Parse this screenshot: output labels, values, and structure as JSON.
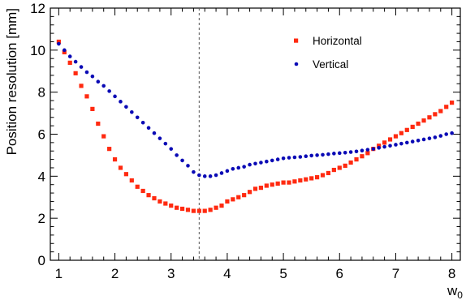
{
  "chart_data": {
    "type": "scatter",
    "xlabel": "w",
    "xlabel_sub": "0",
    "ylabel": "Position resolution [mm]",
    "xlim": [
      0.85,
      8.15
    ],
    "ylim": [
      0,
      12
    ],
    "xticks": [
      "1",
      "2",
      "3",
      "4",
      "5",
      "6",
      "7",
      "8"
    ],
    "yticks": [
      "0",
      "2",
      "4",
      "6",
      "8",
      "10",
      "12"
    ],
    "vline": {
      "x": 3.5,
      "style": "dashed",
      "color": "#555555"
    },
    "legend_position": "top-right",
    "series": [
      {
        "name": "Horizontal",
        "color": "#ff2a10",
        "marker": "square",
        "x": [
          1.0,
          1.1,
          1.2,
          1.3,
          1.4,
          1.5,
          1.6,
          1.7,
          1.8,
          1.9,
          2.0,
          2.1,
          2.2,
          2.3,
          2.4,
          2.5,
          2.6,
          2.7,
          2.8,
          2.9,
          3.0,
          3.1,
          3.2,
          3.3,
          3.4,
          3.5,
          3.6,
          3.7,
          3.8,
          3.9,
          4.0,
          4.1,
          4.2,
          4.3,
          4.4,
          4.5,
          4.6,
          4.7,
          4.8,
          4.9,
          5.0,
          5.1,
          5.2,
          5.3,
          5.4,
          5.5,
          5.6,
          5.7,
          5.8,
          5.9,
          6.0,
          6.1,
          6.2,
          6.3,
          6.4,
          6.5,
          6.6,
          6.7,
          6.8,
          6.9,
          7.0,
          7.1,
          7.2,
          7.3,
          7.4,
          7.5,
          7.6,
          7.7,
          7.8,
          7.9,
          8.0
        ],
        "values": [
          10.4,
          9.9,
          9.4,
          8.9,
          8.3,
          7.8,
          7.2,
          6.5,
          5.9,
          5.3,
          4.8,
          4.4,
          4.1,
          3.8,
          3.5,
          3.3,
          3.1,
          2.95,
          2.8,
          2.7,
          2.6,
          2.5,
          2.45,
          2.4,
          2.35,
          2.35,
          2.35,
          2.4,
          2.5,
          2.6,
          2.8,
          2.9,
          3.0,
          3.1,
          3.25,
          3.4,
          3.45,
          3.55,
          3.6,
          3.65,
          3.7,
          3.7,
          3.75,
          3.8,
          3.85,
          3.9,
          3.95,
          4.05,
          4.15,
          4.3,
          4.4,
          4.5,
          4.65,
          4.8,
          4.95,
          5.1,
          5.3,
          5.45,
          5.6,
          5.75,
          5.9,
          6.05,
          6.2,
          6.35,
          6.5,
          6.65,
          6.8,
          6.95,
          7.1,
          7.3,
          7.5
        ]
      },
      {
        "name": "Vertical",
        "color": "#0a0ab5",
        "marker": "circle",
        "x": [
          1.0,
          1.1,
          1.2,
          1.3,
          1.4,
          1.5,
          1.6,
          1.7,
          1.8,
          1.9,
          2.0,
          2.1,
          2.2,
          2.3,
          2.4,
          2.5,
          2.6,
          2.7,
          2.8,
          2.9,
          3.0,
          3.1,
          3.2,
          3.3,
          3.4,
          3.5,
          3.6,
          3.7,
          3.8,
          3.9,
          4.0,
          4.1,
          4.2,
          4.3,
          4.4,
          4.5,
          4.6,
          4.7,
          4.8,
          4.9,
          5.0,
          5.1,
          5.2,
          5.3,
          5.4,
          5.5,
          5.6,
          5.7,
          5.8,
          5.9,
          6.0,
          6.1,
          6.2,
          6.3,
          6.4,
          6.5,
          6.6,
          6.7,
          6.8,
          6.9,
          7.0,
          7.1,
          7.2,
          7.3,
          7.4,
          7.5,
          7.6,
          7.7,
          7.8,
          7.9,
          8.0
        ],
        "values": [
          10.3,
          10.0,
          9.7,
          9.45,
          9.2,
          8.95,
          8.75,
          8.5,
          8.3,
          8.05,
          7.8,
          7.55,
          7.3,
          7.05,
          6.8,
          6.55,
          6.3,
          6.05,
          5.8,
          5.55,
          5.3,
          5.0,
          4.75,
          4.5,
          4.2,
          4.05,
          4.0,
          4.0,
          4.05,
          4.15,
          4.25,
          4.35,
          4.4,
          4.45,
          4.55,
          4.6,
          4.65,
          4.7,
          4.75,
          4.8,
          4.85,
          4.88,
          4.9,
          4.92,
          4.95,
          4.98,
          5.0,
          5.02,
          5.05,
          5.08,
          5.1,
          5.12,
          5.15,
          5.18,
          5.22,
          5.26,
          5.3,
          5.35,
          5.4,
          5.45,
          5.5,
          5.55,
          5.6,
          5.65,
          5.7,
          5.75,
          5.8,
          5.85,
          5.92,
          6.0,
          6.05
        ]
      }
    ]
  }
}
